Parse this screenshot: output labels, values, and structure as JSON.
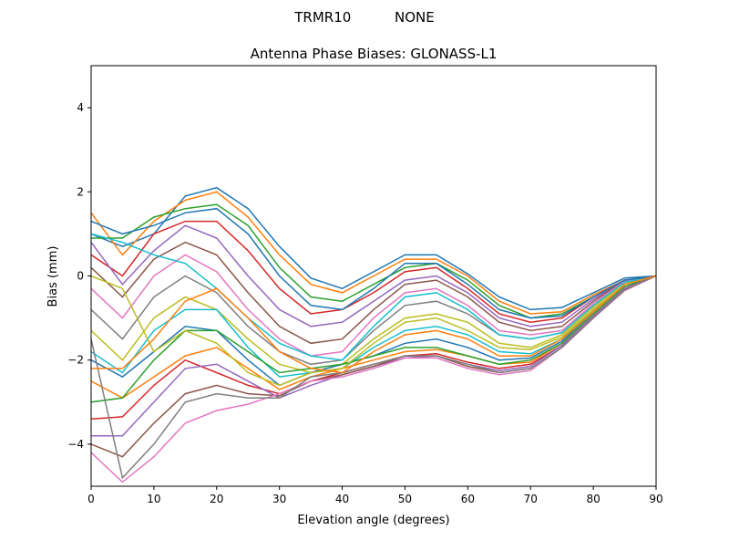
{
  "chart_data": {
    "type": "line",
    "suptitle": "TRMR10          NONE",
    "title": "Antenna Phase Biases: GLONASS-L1",
    "xlabel": "Elevation angle (degrees)",
    "ylabel": "Bias (mm)",
    "xlim": [
      0,
      90
    ],
    "ylim": [
      -5,
      5
    ],
    "xticks": [
      0,
      10,
      20,
      30,
      40,
      50,
      60,
      70,
      80,
      90
    ],
    "yticks": [
      -4,
      -2,
      0,
      2,
      4
    ],
    "grid": false,
    "legend": "none",
    "colors": [
      "#1f77b4",
      "#ff7f0e",
      "#2ca02c",
      "#d62728",
      "#9467bd",
      "#8c564b",
      "#e377c2",
      "#7f7f7f",
      "#bcbd22",
      "#17becf"
    ],
    "x": [
      0,
      5,
      10,
      15,
      20,
      25,
      30,
      35,
      40,
      45,
      50,
      55,
      60,
      65,
      70,
      75,
      80,
      85,
      90
    ],
    "series": [
      {
        "values": [
          1.0,
          0.7,
          1.0,
          1.9,
          2.1,
          1.6,
          0.7,
          -0.05,
          -0.3,
          0.1,
          0.5,
          0.5,
          0.05,
          -0.5,
          -0.8,
          -0.75,
          -0.4,
          -0.05,
          0
        ]
      },
      {
        "values": [
          1.5,
          0.5,
          1.3,
          1.8,
          2.0,
          1.4,
          0.5,
          -0.2,
          -0.4,
          0.0,
          0.4,
          0.4,
          0.0,
          -0.6,
          -0.9,
          -0.85,
          -0.45,
          -0.1,
          0
        ]
      },
      {
        "values": [
          0.9,
          0.9,
          1.4,
          1.6,
          1.7,
          1.2,
          0.2,
          -0.5,
          -0.6,
          -0.2,
          0.2,
          0.3,
          -0.1,
          -0.7,
          -1.0,
          -0.9,
          -0.5,
          -0.1,
          0
        ]
      },
      {
        "values": [
          0.5,
          0.0,
          1.0,
          1.3,
          1.3,
          0.6,
          -0.3,
          -0.9,
          -0.8,
          -0.4,
          0.1,
          0.2,
          -0.3,
          -0.9,
          -1.1,
          -1.0,
          -0.5,
          -0.1,
          0
        ]
      },
      {
        "values": [
          0.8,
          -0.2,
          0.6,
          1.2,
          0.9,
          0.0,
          -0.8,
          -1.2,
          -1.1,
          -0.6,
          -0.1,
          0.0,
          -0.4,
          -1.0,
          -1.2,
          -1.1,
          -0.55,
          -0.1,
          0
        ]
      },
      {
        "values": [
          0.2,
          -0.5,
          0.4,
          0.8,
          0.5,
          -0.4,
          -1.2,
          -1.6,
          -1.5,
          -0.8,
          -0.2,
          -0.1,
          -0.5,
          -1.1,
          -1.3,
          -1.2,
          -0.6,
          -0.1,
          0
        ]
      },
      {
        "values": [
          -0.3,
          -1.0,
          0.0,
          0.5,
          0.1,
          -0.8,
          -1.5,
          -1.9,
          -1.8,
          -1.0,
          -0.4,
          -0.3,
          -0.7,
          -1.3,
          -1.4,
          -1.3,
          -0.65,
          -0.12,
          0
        ]
      },
      {
        "values": [
          -0.8,
          -1.5,
          -0.5,
          0.0,
          -0.4,
          -1.2,
          -1.8,
          -2.1,
          -2.0,
          -1.3,
          -0.7,
          -0.6,
          -0.9,
          -1.4,
          -1.5,
          -1.35,
          -0.7,
          -0.15,
          0
        ]
      },
      {
        "values": [
          -1.3,
          -2.0,
          -1.0,
          -0.5,
          -0.8,
          -1.5,
          -2.1,
          -2.3,
          -2.1,
          -1.5,
          -1.0,
          -0.9,
          -1.1,
          -1.6,
          -1.7,
          -1.4,
          -0.75,
          -0.15,
          0
        ]
      },
      {
        "values": [
          -1.8,
          -2.3,
          -1.3,
          -0.8,
          -0.8,
          -1.7,
          -2.4,
          -2.3,
          -2.2,
          -1.7,
          -1.3,
          -1.2,
          -1.4,
          -1.8,
          -1.85,
          -1.5,
          -0.8,
          -0.2,
          0
        ]
      },
      {
        "values": [
          -2.0,
          -2.4,
          -1.8,
          -1.2,
          -1.3,
          -2.0,
          -2.6,
          -2.3,
          -2.1,
          -1.9,
          -1.6,
          -1.5,
          -1.7,
          -2.0,
          -1.95,
          -1.55,
          -0.85,
          -0.2,
          0
        ]
      },
      {
        "values": [
          -2.5,
          -2.9,
          -2.4,
          -1.9,
          -1.7,
          -2.2,
          -2.7,
          -2.4,
          -2.2,
          -2.0,
          -1.8,
          -1.75,
          -1.9,
          -2.1,
          -2.05,
          -1.6,
          -0.9,
          -0.25,
          0
        ]
      },
      {
        "values": [
          -3.0,
          -2.9,
          -2.0,
          -1.3,
          -1.3,
          -1.8,
          -2.3,
          -2.2,
          -2.1,
          -1.9,
          -1.7,
          -1.7,
          -1.9,
          -2.1,
          -2.0,
          -1.6,
          -0.9,
          -0.25,
          0
        ]
      },
      {
        "values": [
          -3.4,
          -3.35,
          -2.6,
          -2.0,
          -2.3,
          -2.6,
          -2.8,
          -2.5,
          -2.3,
          -2.1,
          -1.9,
          -1.85,
          -2.05,
          -2.2,
          -2.1,
          -1.65,
          -0.95,
          -0.3,
          0
        ]
      },
      {
        "values": [
          -3.8,
          -3.8,
          -3.0,
          -2.2,
          -2.1,
          -2.5,
          -2.9,
          -2.6,
          -2.35,
          -2.15,
          -1.95,
          -1.9,
          -2.1,
          -2.25,
          -2.15,
          -1.65,
          -0.95,
          -0.3,
          0
        ]
      },
      {
        "values": [
          -4.0,
          -4.3,
          -3.5,
          -2.8,
          -2.6,
          -2.8,
          -2.85,
          -2.5,
          -2.35,
          -2.15,
          -1.9,
          -1.9,
          -2.15,
          -2.3,
          -2.2,
          -1.7,
          -1.0,
          -0.33,
          0
        ]
      },
      {
        "values": [
          -4.2,
          -4.9,
          -4.3,
          -3.5,
          -3.2,
          -3.05,
          -2.8,
          -2.5,
          -2.4,
          -2.2,
          -1.95,
          -1.95,
          -2.2,
          -2.35,
          -2.25,
          -1.7,
          -1.0,
          -0.35,
          0
        ]
      },
      {
        "values": [
          -1.5,
          -4.8,
          -4.0,
          -3.0,
          -2.8,
          -2.9,
          -2.9,
          -2.4,
          -2.3,
          -2.1,
          -1.9,
          -1.9,
          -2.1,
          -2.3,
          -2.2,
          -1.7,
          -1.0,
          -0.33,
          0
        ]
      },
      {
        "values": [
          0.0,
          -0.3,
          -1.8,
          -1.3,
          -1.6,
          -2.3,
          -2.6,
          -2.3,
          -2.2,
          -1.6,
          -1.1,
          -1.0,
          -1.3,
          -1.7,
          -1.75,
          -1.45,
          -0.8,
          -0.2,
          0
        ]
      },
      {
        "values": [
          1.0,
          0.8,
          0.5,
          0.3,
          -0.3,
          -1.0,
          -1.6,
          -1.9,
          -2.0,
          -1.2,
          -0.5,
          -0.4,
          -0.8,
          -1.4,
          -1.5,
          -1.35,
          -0.7,
          -0.15,
          0
        ]
      },
      {
        "values": [
          1.3,
          1.0,
          1.2,
          1.5,
          1.6,
          1.0,
          0.0,
          -0.7,
          -0.8,
          -0.3,
          0.3,
          0.3,
          -0.2,
          -0.8,
          -1.0,
          -0.95,
          -0.5,
          -0.1,
          0
        ]
      },
      {
        "values": [
          -2.2,
          -2.2,
          -1.5,
          -0.6,
          -0.3,
          -1.0,
          -1.8,
          -2.2,
          -2.3,
          -1.8,
          -1.4,
          -1.3,
          -1.5,
          -1.9,
          -1.9,
          -1.5,
          -0.85,
          -0.2,
          0
        ]
      }
    ]
  }
}
